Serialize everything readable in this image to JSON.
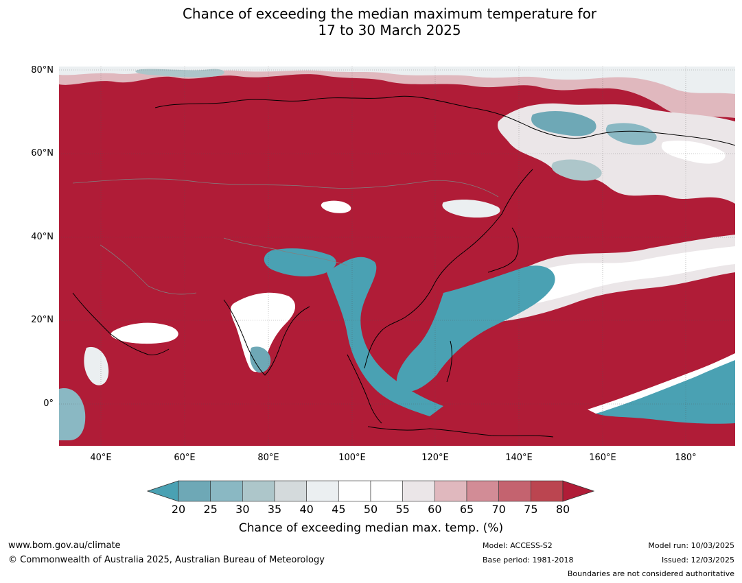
{
  "title": {
    "line1": "Chance of exceeding the median maximum temperature for",
    "line2": "17 to 30 March 2025"
  },
  "map": {
    "lat_labels": [
      "80°N",
      "60°N",
      "40°N",
      "20°N",
      "0°"
    ],
    "lon_labels": [
      "40°E",
      "60°E",
      "80°E",
      "100°E",
      "120°E",
      "140°E",
      "160°E",
      "180°"
    ],
    "colors": {
      "ocean_background": "#b01c37",
      "coastline": "#000000",
      "border": "#808080"
    }
  },
  "colorbar": {
    "ticks": [
      "20",
      "25",
      "30",
      "35",
      "40",
      "45",
      "50",
      "55",
      "60",
      "65",
      "70",
      "75",
      "80"
    ],
    "colors": [
      "#4aa1b3",
      "#6ea8b6",
      "#8ab8c3",
      "#adc6ca",
      "#d4dadc",
      "#ebeff1",
      "#ffffff",
      "#ffffff",
      "#ebe6e8",
      "#e0b8be",
      "#d28c96",
      "#c4636f",
      "#bb4550",
      "#b01c37"
    ],
    "label": "Chance of exceeding median max. temp. (%)"
  },
  "footer": {
    "website": "www.bom.gov.au/climate",
    "copyright": "© Commonwealth of Australia 2025, Australian Bureau of Meteorology",
    "model": "Model: ACCESS-S2",
    "base_period": "Base period: 1981-2018",
    "model_run": "Model run: 10/03/2025",
    "issued": "Issued: 12/03/2025",
    "disclaimer": "Boundaries are not considered authoritative"
  }
}
